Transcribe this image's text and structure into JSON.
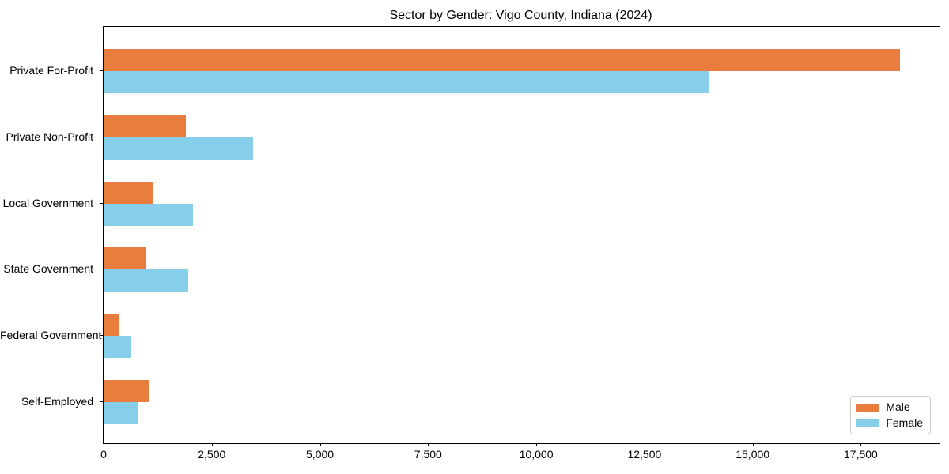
{
  "title": "Sector by Gender: Vigo County, Indiana (2024)",
  "chart_data": {
    "type": "bar",
    "orientation": "horizontal",
    "title": "Sector by Gender: Vigo County, Indiana (2024)",
    "xlabel": "",
    "ylabel": "",
    "categories": [
      "Private For-Profit",
      "Private Non-Profit",
      "Local Government",
      "State Government",
      "Federal Government",
      "Self-Employed"
    ],
    "series": [
      {
        "name": "Male",
        "color": "#E87D3D",
        "values": [
          18400,
          1900,
          1130,
          960,
          350,
          1050
        ]
      },
      {
        "name": "Female",
        "color": "#87CEEB",
        "values": [
          14000,
          3460,
          2070,
          1960,
          640,
          790
        ]
      }
    ],
    "xlim": [
      0,
      19320
    ],
    "xticks": [
      0,
      2500,
      5000,
      7500,
      10000,
      12500,
      15000,
      17500
    ],
    "xtick_labels": [
      "0",
      "2,500",
      "5,000",
      "7,500",
      "10,000",
      "12,500",
      "15,000",
      "17,500"
    ],
    "grid": false,
    "legend": {
      "position": "lower right",
      "entries": [
        "Male",
        "Female"
      ]
    },
    "background_color": "#ffffff",
    "frame_color": "#000000"
  }
}
